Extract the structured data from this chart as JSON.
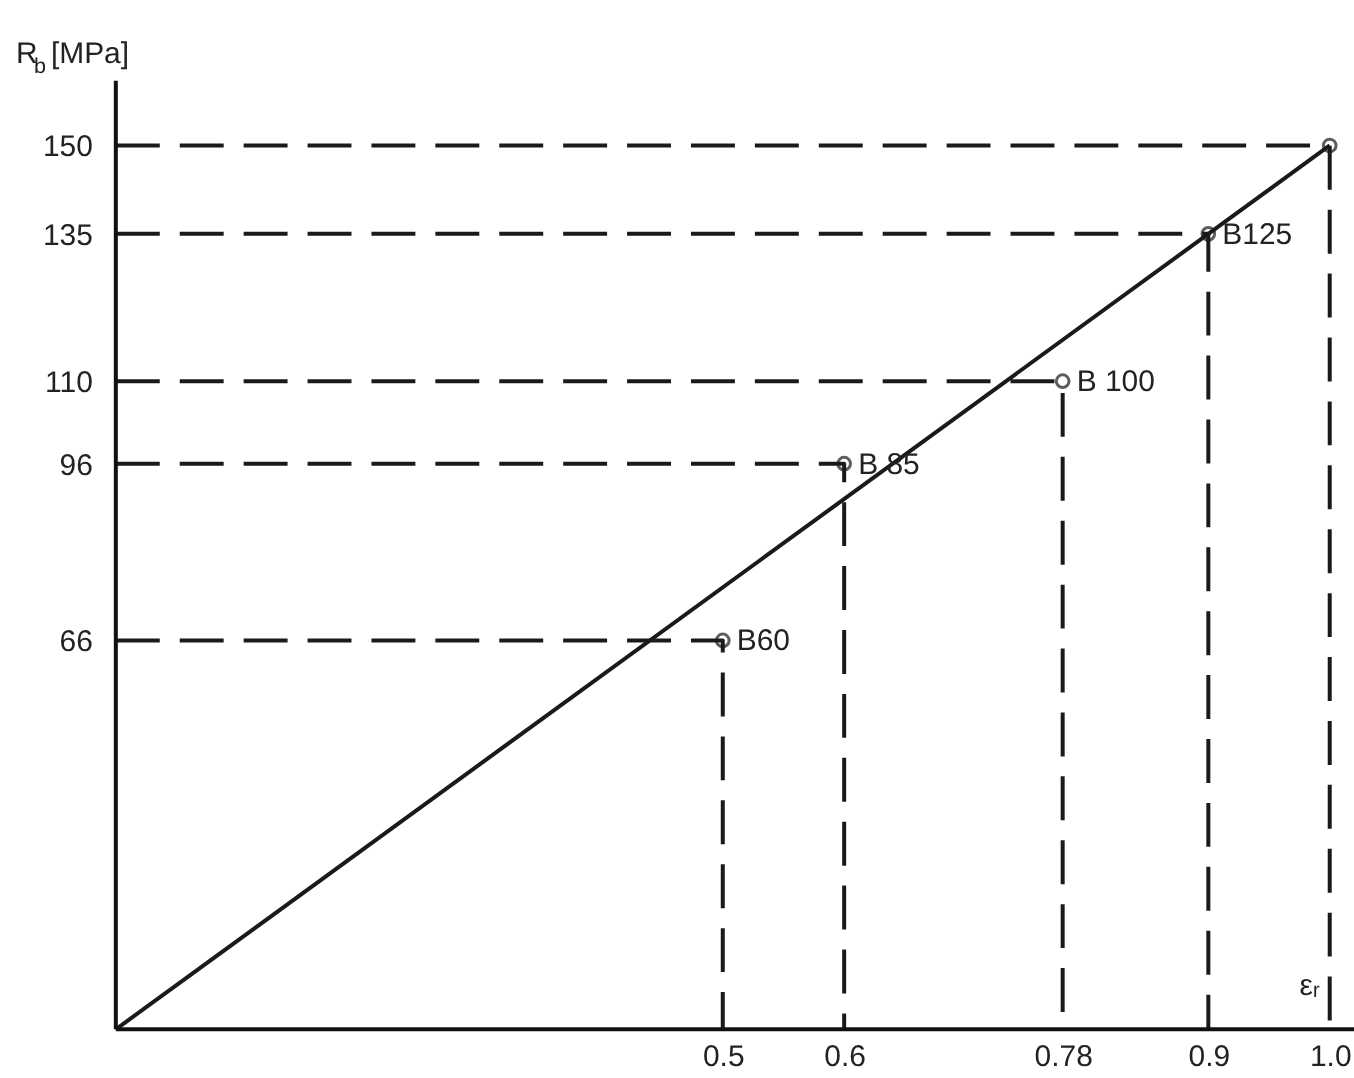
{
  "chart_data": {
    "type": "line",
    "xlabel": "εᵣ",
    "ylabel": "R$_{b}$ [MPa]",
    "xlim": [
      0,
      1.02
    ],
    "ylim": [
      0,
      161
    ],
    "xticks": [
      0.5,
      0.6,
      0.78,
      0.9,
      {
        "value": 1.0,
        "label": "1.0"
      }
    ],
    "yticks": [
      66,
      96,
      110,
      135,
      150
    ],
    "grid": false,
    "series": [
      {
        "color": "#1a1a1a",
        "line_style": "solid",
        "x": [
          0,
          1.0
        ],
        "values": [
          0,
          150
        ]
      },
      {
        "color": "#1a1a1a",
        "line_style": "dashed",
        "x": [
          0,
          0.5,
          0.5
        ],
        "values": [
          66,
          66,
          0
        ]
      },
      {
        "color": "#1a1a1a",
        "line_style": "dashed",
        "x": [
          0,
          0.6,
          0.6
        ],
        "values": [
          96,
          96,
          0
        ]
      },
      {
        "color": "#1a1a1a",
        "line_style": "dashed",
        "x": [
          0,
          0.78,
          0.78
        ],
        "values": [
          110,
          110,
          0
        ]
      },
      {
        "color": "#1a1a1a",
        "line_style": "dashed",
        "x": [
          0,
          0.9,
          0.9
        ],
        "values": [
          135,
          135,
          0
        ]
      },
      {
        "color": "#1a1a1a",
        "line_style": "dashed",
        "x": [
          0,
          1.0,
          1.0
        ],
        "values": [
          150,
          150,
          0
        ]
      },
      {
        "type": "scatter",
        "color": "#1a1a1a",
        "marker": "circle",
        "x": [
          0.5,
          0.6,
          0.78,
          0.9,
          1.0
        ],
        "values": [
          66,
          96,
          110,
          135,
          150
        ]
      }
    ],
    "annotations": [
      {
        "text": "B60",
        "x": 0.5,
        "y": 66
      },
      {
        "text": "B 85",
        "x": 0.6,
        "y": 96
      },
      {
        "text": "B 100",
        "x": 0.78,
        "y": 110
      },
      {
        "text": "B125",
        "x": 0.9,
        "y": 135
      }
    ]
  }
}
